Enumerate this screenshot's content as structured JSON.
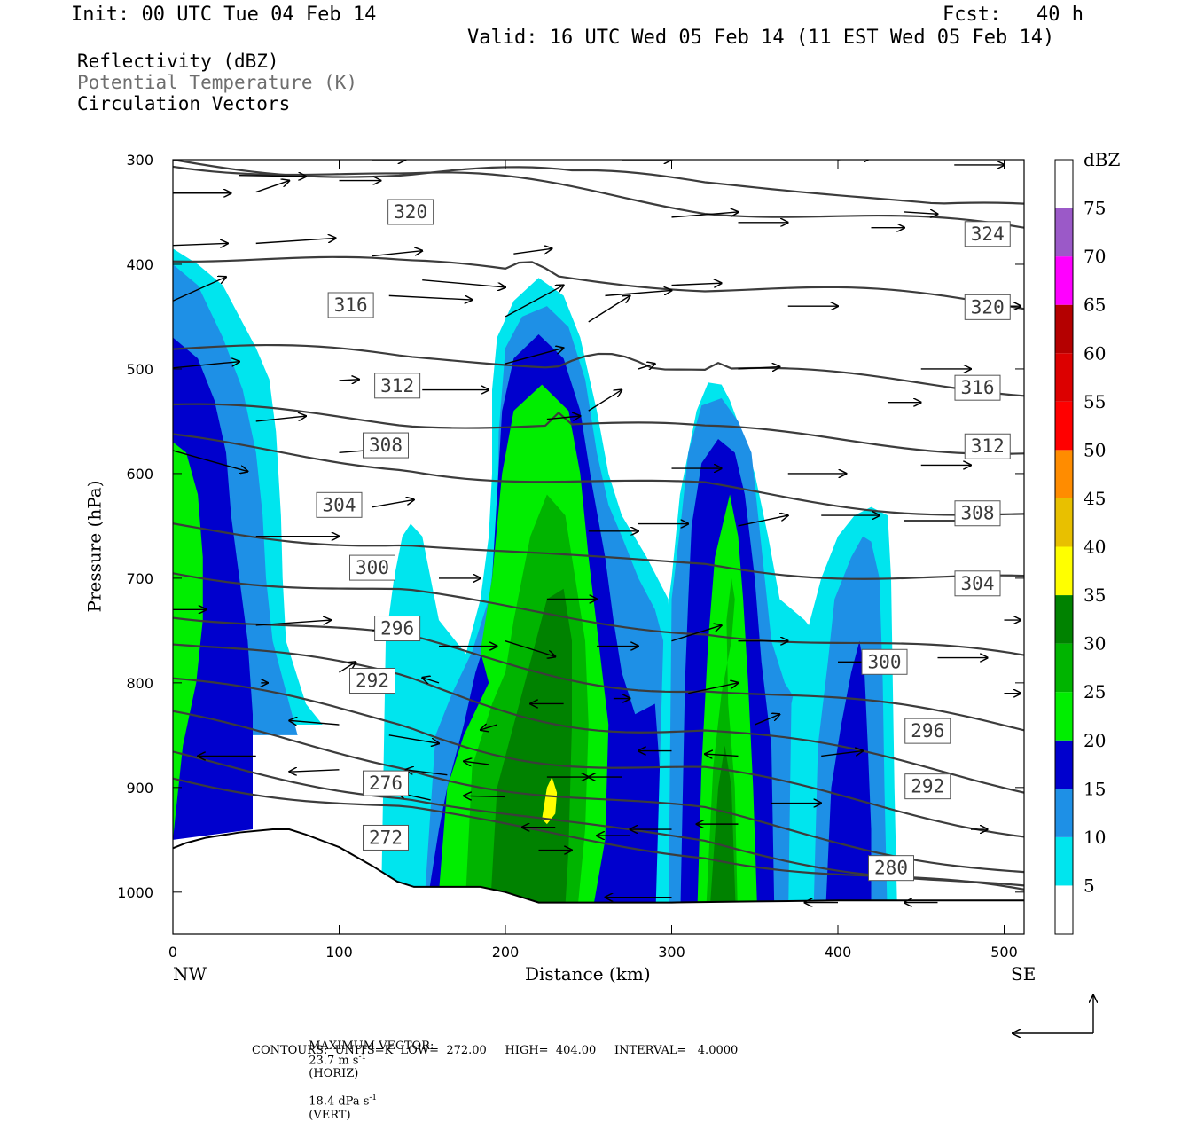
{
  "header": {
    "init": "Init: 00 UTC Tue 04 Feb 14",
    "fcst": "Fcst:   40 h",
    "valid": "Valid: 16 UTC Wed 05 Feb 14 (11 EST Wed 05 Feb 14)"
  },
  "legend_lines": {
    "reflectivity": "Reflectivity (dBZ)",
    "theta": "Potential Temperature (K)",
    "vectors": "Circulation Vectors"
  },
  "footer": {
    "max_vector_prefix": "MAXIMUM VECTOR:",
    "horiz_value": "23.7 m s",
    "horiz_units_tail": "(HORIZ)",
    "vert_value": "18.4 dPa s",
    "vert_units_tail": "(VERT)",
    "contours": "CONTOURS:  UNITS=K  LOW=  272.00     HIGH=  404.00     INTERVAL=   4.0000"
  },
  "chart_data": {
    "type": "cross-section",
    "xlabel": "Distance (km)",
    "ylabel": "Pressure (hPa)",
    "xlim": [
      0,
      512
    ],
    "ylim": [
      1040,
      300
    ],
    "x_ticks": [
      0,
      100,
      200,
      300,
      400,
      500
    ],
    "y_ticks": [
      300,
      400,
      500,
      600,
      700,
      800,
      900,
      1000
    ],
    "x_end_labels": {
      "left": "NW",
      "right": "SE"
    },
    "colorbar": {
      "units": "dBZ",
      "levels": [
        5,
        10,
        15,
        20,
        25,
        30,
        35,
        40,
        45,
        50,
        55,
        60,
        65,
        70,
        75
      ],
      "colors": [
        "#ffffff",
        "#00e5ee",
        "#1e90e6",
        "#0000cd",
        "#00ee00",
        "#00b400",
        "#008200",
        "#ffff00",
        "#e8c000",
        "#ff8c00",
        "#ff0000",
        "#dc0000",
        "#b40000",
        "#ff00ff",
        "#9b59c8",
        "#ffffff"
      ]
    },
    "reflectivity_cells": [
      {
        "name": "cell-nw",
        "x": [
          0,
          60
        ],
        "top_hPa": 385,
        "max_dBZ": 25
      },
      {
        "name": "cell-small",
        "x": [
          130,
          175
        ],
        "top_hPa": 648,
        "max_dBZ": 5
      },
      {
        "name": "cell-main",
        "x": [
          150,
          290
        ],
        "top_hPa": 413,
        "max_dBZ": 37
      },
      {
        "name": "cell-mid",
        "x": [
          300,
          360
        ],
        "top_hPa": 513,
        "max_dBZ": 32
      },
      {
        "name": "cell-se",
        "x": [
          390,
          430
        ],
        "top_hPa": 632,
        "max_dBZ": 18
      }
    ],
    "theta_contours": {
      "units": "K",
      "low": 272.0,
      "high": 404.0,
      "interval": 4.0,
      "labels": [
        {
          "value": "272",
          "x": 128,
          "p": 948
        },
        {
          "value": "276",
          "x": 128,
          "p": 896
        },
        {
          "value": "280",
          "x": 432,
          "p": 977
        },
        {
          "value": "292",
          "x": 120,
          "p": 798
        },
        {
          "value": "296",
          "x": 135,
          "p": 748
        },
        {
          "value": "300",
          "x": 120,
          "p": 690
        },
        {
          "value": "304",
          "x": 100,
          "p": 630
        },
        {
          "value": "308",
          "x": 128,
          "p": 573
        },
        {
          "value": "312",
          "x": 135,
          "p": 516
        },
        {
          "value": "316",
          "x": 107,
          "p": 439
        },
        {
          "value": "320",
          "x": 143,
          "p": 350
        },
        {
          "value": "300",
          "x": 428,
          "p": 780
        },
        {
          "value": "296",
          "x": 454,
          "p": 846
        },
        {
          "value": "292",
          "x": 454,
          "p": 899
        },
        {
          "value": "304",
          "x": 484,
          "p": 705
        },
        {
          "value": "308",
          "x": 484,
          "p": 638
        },
        {
          "value": "312",
          "x": 490,
          "p": 574
        },
        {
          "value": "316",
          "x": 484,
          "p": 518
        },
        {
          "value": "320",
          "x": 490,
          "p": 441
        },
        {
          "value": "324",
          "x": 490,
          "p": 371
        }
      ]
    },
    "max_vector": {
      "horiz_m_s": 23.7,
      "vert_dPa_s": 18.4
    }
  }
}
